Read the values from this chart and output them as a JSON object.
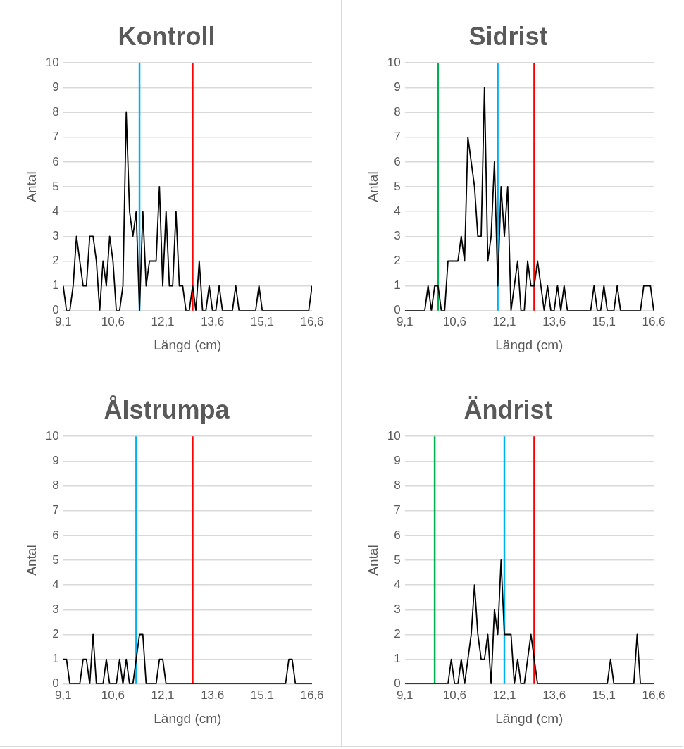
{
  "chart_data": [
    {
      "type": "line",
      "title": "Kontroll",
      "xlabel": "Längd (cm)",
      "ylabel": "Antal",
      "grid": "y",
      "legend": false,
      "marker": "none",
      "line_style": "solid",
      "x": [
        9.1,
        9.2,
        9.3,
        9.4,
        9.5,
        9.6,
        9.7,
        9.8,
        9.9,
        10.0,
        10.1,
        10.2,
        10.3,
        10.4,
        10.5,
        10.6,
        10.7,
        10.8,
        10.9,
        11.0,
        11.1,
        11.2,
        11.3,
        11.4,
        11.5,
        11.6,
        11.7,
        11.8,
        11.9,
        12.0,
        12.1,
        12.2,
        12.3,
        12.4,
        12.5,
        12.6,
        12.7,
        12.8,
        12.9,
        13.0,
        13.1,
        13.2,
        13.3,
        13.4,
        13.5,
        13.6,
        13.7,
        13.8,
        13.9,
        14.0,
        14.1,
        14.2,
        14.3,
        14.4,
        14.5,
        14.6,
        14.7,
        14.8,
        14.9,
        15.0,
        15.1,
        15.2,
        15.3,
        15.4,
        15.5,
        15.6,
        15.7,
        15.8,
        15.9,
        16.0,
        16.1,
        16.2,
        16.3,
        16.4,
        16.5,
        16.6
      ],
      "series": [
        {
          "color": "#000000",
          "values": [
            1,
            0,
            0,
            1,
            3,
            2,
            1,
            1,
            3,
            3,
            2,
            0,
            2,
            1,
            3,
            2,
            0,
            0,
            1,
            8,
            4,
            3,
            4,
            0,
            4,
            1,
            2,
            2,
            2,
            5,
            1,
            4,
            1,
            1,
            4,
            1,
            1,
            0,
            0,
            1,
            0,
            2,
            0,
            0,
            1,
            0,
            0,
            1,
            0,
            0,
            0,
            0,
            1,
            0,
            0,
            0,
            0,
            0,
            0,
            1,
            0,
            0,
            0,
            0,
            0,
            0,
            0,
            0,
            0,
            0,
            0,
            0,
            0,
            0,
            0,
            1
          ]
        }
      ],
      "xlim": [
        9.1,
        16.6
      ],
      "xticks": [
        {
          "value": 9.1,
          "label": "9,1"
        },
        {
          "value": 10.6,
          "label": "10,6"
        },
        {
          "value": 12.1,
          "label": "12,1"
        },
        {
          "value": 13.6,
          "label": "13,6"
        },
        {
          "value": 15.1,
          "label": "15,1"
        },
        {
          "value": 16.6,
          "label": "16,6"
        }
      ],
      "ylim": [
        0,
        10
      ],
      "yticks": [
        0,
        1,
        2,
        3,
        4,
        5,
        6,
        7,
        8,
        9,
        10
      ],
      "ref_lines": [
        {
          "axis": "x",
          "value": 11.4,
          "color": "#00b0f0"
        },
        {
          "axis": "x",
          "value": 13.0,
          "color": "#ff0000"
        }
      ]
    },
    {
      "type": "line",
      "title": "Sidrist",
      "xlabel": "Längd (cm)",
      "ylabel": "Antal",
      "grid": "y",
      "legend": false,
      "marker": "none",
      "line_style": "solid",
      "x": [
        9.1,
        9.2,
        9.3,
        9.4,
        9.5,
        9.6,
        9.7,
        9.8,
        9.9,
        10.0,
        10.1,
        10.2,
        10.3,
        10.4,
        10.5,
        10.6,
        10.7,
        10.8,
        10.9,
        11.0,
        11.1,
        11.2,
        11.3,
        11.4,
        11.5,
        11.6,
        11.7,
        11.8,
        11.9,
        12.0,
        12.1,
        12.2,
        12.3,
        12.4,
        12.5,
        12.6,
        12.7,
        12.8,
        12.9,
        13.0,
        13.1,
        13.2,
        13.3,
        13.4,
        13.5,
        13.6,
        13.7,
        13.8,
        13.9,
        14.0,
        14.1,
        14.2,
        14.3,
        14.4,
        14.5,
        14.6,
        14.7,
        14.8,
        14.9,
        15.0,
        15.1,
        15.2,
        15.3,
        15.4,
        15.5,
        15.6,
        15.7,
        15.8,
        15.9,
        16.0,
        16.1,
        16.2,
        16.3,
        16.4,
        16.5,
        16.6
      ],
      "series": [
        {
          "color": "#000000",
          "values": [
            0,
            0,
            0,
            0,
            0,
            0,
            0,
            1,
            0,
            1,
            1,
            0,
            0,
            2,
            2,
            2,
            2,
            3,
            2,
            7,
            6,
            5,
            3,
            3,
            9,
            2,
            3,
            6,
            1,
            5,
            3,
            5,
            0,
            1,
            2,
            0,
            0,
            2,
            1,
            1,
            2,
            1,
            0,
            1,
            0,
            0,
            1,
            0,
            1,
            0,
            0,
            0,
            0,
            0,
            0,
            0,
            0,
            1,
            0,
            0,
            1,
            0,
            0,
            0,
            1,
            0,
            0,
            0,
            0,
            0,
            0,
            0,
            1,
            1,
            1,
            0
          ]
        }
      ],
      "xlim": [
        9.1,
        16.6
      ],
      "xticks": [
        {
          "value": 9.1,
          "label": "9,1"
        },
        {
          "value": 10.6,
          "label": "10,6"
        },
        {
          "value": 12.1,
          "label": "12,1"
        },
        {
          "value": 13.6,
          "label": "13,6"
        },
        {
          "value": 15.1,
          "label": "15,1"
        },
        {
          "value": 16.6,
          "label": "16,6"
        }
      ],
      "ylim": [
        0,
        10
      ],
      "yticks": [
        0,
        1,
        2,
        3,
        4,
        5,
        6,
        7,
        8,
        9,
        10
      ],
      "ref_lines": [
        {
          "axis": "x",
          "value": 10.1,
          "color": "#00b050"
        },
        {
          "axis": "x",
          "value": 11.9,
          "color": "#00b0f0"
        },
        {
          "axis": "x",
          "value": 13.0,
          "color": "#ff0000"
        }
      ]
    },
    {
      "type": "line",
      "title": "Ålstrumpa",
      "xlabel": "Längd (cm)",
      "ylabel": "Antal",
      "grid": "y",
      "legend": false,
      "marker": "none",
      "line_style": "solid",
      "x": [
        9.1,
        9.2,
        9.3,
        9.4,
        9.5,
        9.6,
        9.7,
        9.8,
        9.9,
        10.0,
        10.1,
        10.2,
        10.3,
        10.4,
        10.5,
        10.6,
        10.7,
        10.8,
        10.9,
        11.0,
        11.1,
        11.2,
        11.3,
        11.4,
        11.5,
        11.6,
        11.7,
        11.8,
        11.9,
        12.0,
        12.1,
        12.2,
        12.3,
        12.4,
        12.5,
        12.6,
        12.7,
        12.8,
        12.9,
        13.0,
        13.1,
        13.2,
        13.3,
        13.4,
        13.5,
        13.6,
        13.7,
        13.8,
        13.9,
        14.0,
        14.1,
        14.2,
        14.3,
        14.4,
        14.5,
        14.6,
        14.7,
        14.8,
        14.9,
        15.0,
        15.1,
        15.2,
        15.3,
        15.4,
        15.5,
        15.6,
        15.7,
        15.8,
        15.9,
        16.0,
        16.1,
        16.2,
        16.3,
        16.4,
        16.5,
        16.6
      ],
      "series": [
        {
          "color": "#000000",
          "values": [
            1,
            1,
            0,
            0,
            0,
            0,
            1,
            1,
            0,
            2,
            0,
            0,
            0,
            1,
            0,
            0,
            0,
            1,
            0,
            1,
            0,
            0,
            1,
            2,
            2,
            0,
            0,
            0,
            0,
            1,
            1,
            0,
            0,
            0,
            0,
            0,
            0,
            0,
            0,
            0,
            0,
            0,
            0,
            0,
            0,
            0,
            0,
            0,
            0,
            0,
            0,
            0,
            0,
            0,
            0,
            0,
            0,
            0,
            0,
            0,
            0,
            0,
            0,
            0,
            0,
            0,
            0,
            0,
            1,
            1,
            0,
            0,
            0,
            0,
            0,
            0
          ]
        }
      ],
      "xlim": [
        9.1,
        16.6
      ],
      "xticks": [
        {
          "value": 9.1,
          "label": "9,1"
        },
        {
          "value": 10.6,
          "label": "10,6"
        },
        {
          "value": 12.1,
          "label": "12,1"
        },
        {
          "value": 13.6,
          "label": "13,6"
        },
        {
          "value": 15.1,
          "label": "15,1"
        },
        {
          "value": 16.6,
          "label": "16,6"
        }
      ],
      "ylim": [
        0,
        10
      ],
      "yticks": [
        0,
        1,
        2,
        3,
        4,
        5,
        6,
        7,
        8,
        9,
        10
      ],
      "ref_lines": [
        {
          "axis": "x",
          "value": 11.3,
          "color": "#00b0f0"
        },
        {
          "axis": "x",
          "value": 13.0,
          "color": "#ff0000"
        }
      ]
    },
    {
      "type": "line",
      "title": "Ändrist",
      "xlabel": "Längd (cm)",
      "ylabel": "Antal",
      "grid": "y",
      "legend": false,
      "marker": "none",
      "line_style": "solid",
      "x": [
        9.1,
        9.2,
        9.3,
        9.4,
        9.5,
        9.6,
        9.7,
        9.8,
        9.9,
        10.0,
        10.1,
        10.2,
        10.3,
        10.4,
        10.5,
        10.6,
        10.7,
        10.8,
        10.9,
        11.0,
        11.1,
        11.2,
        11.3,
        11.4,
        11.5,
        11.6,
        11.7,
        11.8,
        11.9,
        12.0,
        12.1,
        12.2,
        12.3,
        12.4,
        12.5,
        12.6,
        12.7,
        12.8,
        12.9,
        13.0,
        13.1,
        13.2,
        13.3,
        13.4,
        13.5,
        13.6,
        13.7,
        13.8,
        13.9,
        14.0,
        14.1,
        14.2,
        14.3,
        14.4,
        14.5,
        14.6,
        14.7,
        14.8,
        14.9,
        15.0,
        15.1,
        15.2,
        15.3,
        15.4,
        15.5,
        15.6,
        15.7,
        15.8,
        15.9,
        16.0,
        16.1,
        16.2,
        16.3,
        16.4,
        16.5,
        16.6
      ],
      "series": [
        {
          "color": "#000000",
          "values": [
            0,
            0,
            0,
            0,
            0,
            0,
            0,
            0,
            0,
            0,
            0,
            0,
            0,
            0,
            1,
            0,
            0,
            1,
            0,
            1,
            2,
            4,
            2,
            1,
            1,
            2,
            0,
            3,
            2,
            5,
            2,
            2,
            2,
            0,
            1,
            0,
            0,
            1,
            2,
            1,
            0,
            0,
            0,
            0,
            0,
            0,
            0,
            0,
            0,
            0,
            0,
            0,
            0,
            0,
            0,
            0,
            0,
            0,
            0,
            0,
            0,
            0,
            1,
            0,
            0,
            0,
            0,
            0,
            0,
            0,
            2,
            0,
            0,
            0,
            0,
            0
          ]
        }
      ],
      "xlim": [
        9.1,
        16.6
      ],
      "xticks": [
        {
          "value": 9.1,
          "label": "9,1"
        },
        {
          "value": 10.6,
          "label": "10,6"
        },
        {
          "value": 12.1,
          "label": "12,1"
        },
        {
          "value": 13.6,
          "label": "13,6"
        },
        {
          "value": 15.1,
          "label": "15,1"
        },
        {
          "value": 16.6,
          "label": "16,6"
        }
      ],
      "ylim": [
        0,
        10
      ],
      "yticks": [
        0,
        1,
        2,
        3,
        4,
        5,
        6,
        7,
        8,
        9,
        10
      ],
      "ref_lines": [
        {
          "axis": "x",
          "value": 10.0,
          "color": "#00b050"
        },
        {
          "axis": "x",
          "value": 12.1,
          "color": "#00b0f0"
        },
        {
          "axis": "x",
          "value": 13.0,
          "color": "#ff0000"
        }
      ]
    }
  ]
}
